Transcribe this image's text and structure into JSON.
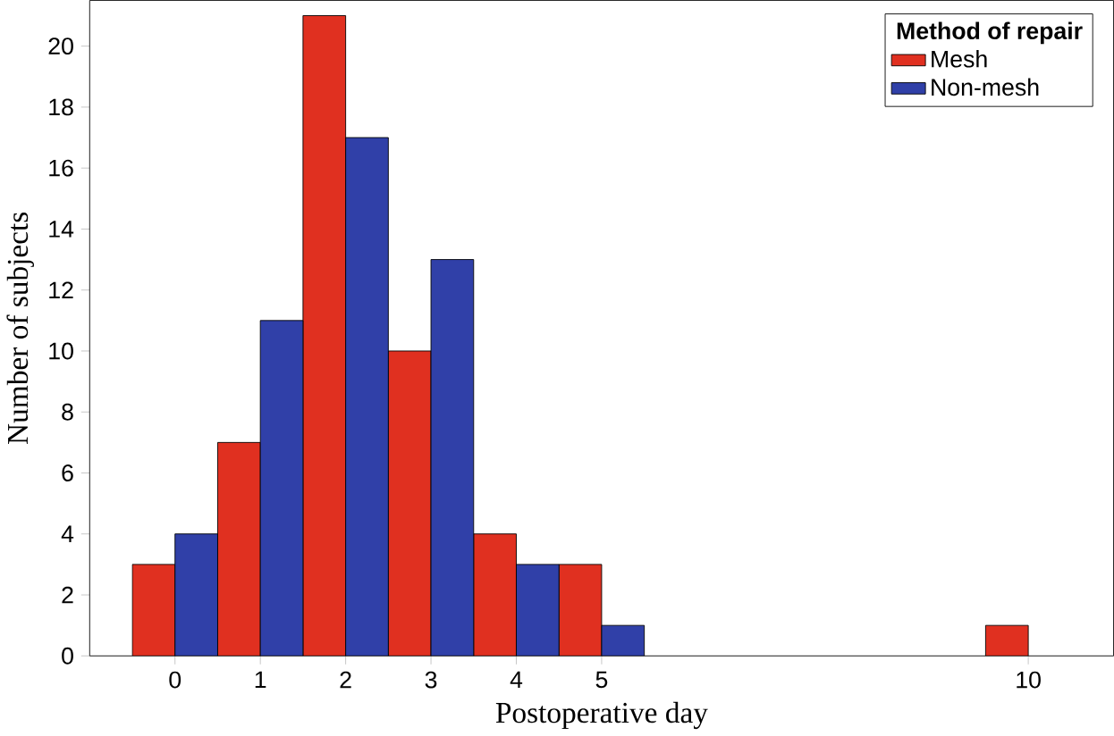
{
  "chart_data": {
    "type": "bar",
    "xlabel": "Postoperative day",
    "ylabel": "Number of subjects",
    "legend_title": "Method of repair",
    "x": [
      0,
      1,
      2,
      3,
      4,
      5,
      10
    ],
    "series": [
      {
        "name": "Mesh",
        "color": "#e03020",
        "values": [
          3,
          7,
          21,
          10,
          4,
          3,
          1
        ]
      },
      {
        "name": "Non-mesh",
        "color": "#3040a8",
        "values": [
          4,
          11,
          17,
          13,
          3,
          1,
          null
        ]
      }
    ],
    "xlim": [
      -1,
      11
    ],
    "xticks": [
      0,
      1,
      2,
      3,
      4,
      5,
      10
    ],
    "ylim": [
      0,
      21.5
    ],
    "yticks": [
      0,
      2,
      4,
      6,
      8,
      10,
      12,
      14,
      16,
      18,
      20
    ],
    "legend": "top right",
    "grid": false
  }
}
